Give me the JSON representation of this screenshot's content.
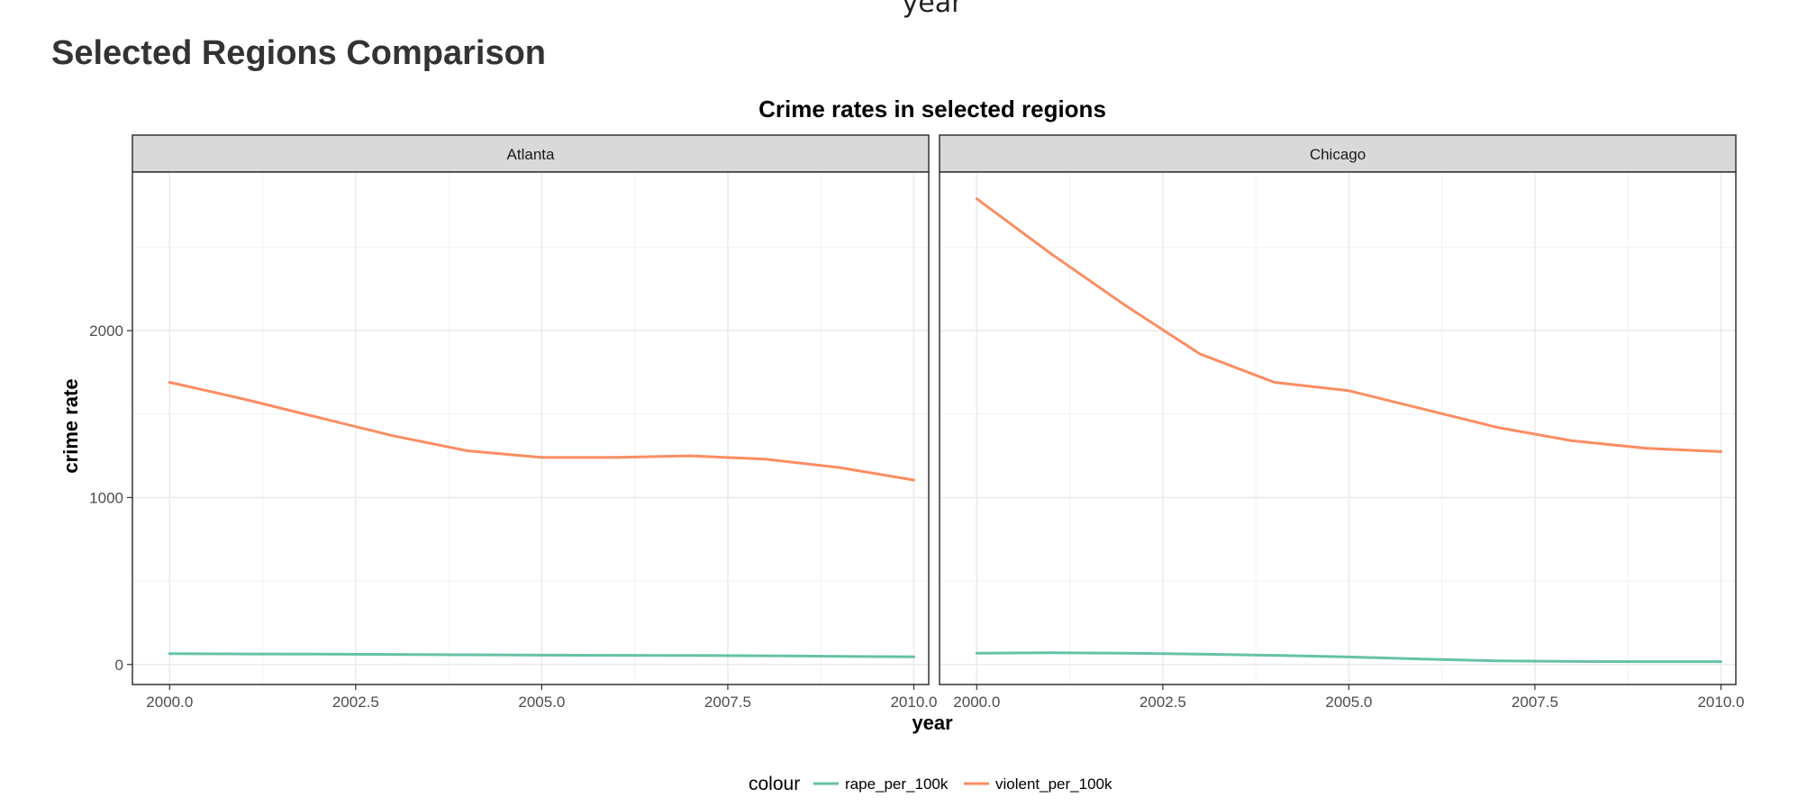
{
  "header": {
    "clipped_axis_label": "year",
    "page_title": "Selected Regions Comparison"
  },
  "colors": {
    "rape_per_100k": "#66c2a5",
    "violent_per_100k": "#fc8d62",
    "strip_fill": "#d9d9d9",
    "grid": "#ebebeb"
  },
  "chart_data": {
    "type": "line",
    "title": "Crime rates in selected regions",
    "xlabel": "year",
    "ylabel": "crime rate",
    "xlim": [
      1999.5,
      2010.2
    ],
    "ylim": [
      -120,
      2950
    ],
    "x_ticks": [
      2000.0,
      2002.5,
      2005.0,
      2007.5,
      2010.0
    ],
    "x_tick_labels": [
      "2000.0",
      "2002.5",
      "2005.0",
      "2007.5",
      "2010.0"
    ],
    "y_ticks": [
      0,
      1000,
      2000
    ],
    "y_tick_labels": [
      "0",
      "1000",
      "2000"
    ],
    "grid": true,
    "legend": {
      "title": "colour",
      "position": "bottom",
      "entries": [
        "rape_per_100k",
        "violent_per_100k"
      ]
    },
    "panels": [
      {
        "label": "Atlanta",
        "x": [
          2000,
          2001,
          2002,
          2003,
          2004,
          2005,
          2006,
          2007,
          2008,
          2009,
          2010
        ],
        "series": [
          {
            "name": "rape_per_100k",
            "values": [
              65,
              63,
              62,
              60,
              58,
              56,
              55,
              54,
              52,
              49,
              46
            ]
          },
          {
            "name": "violent_per_100k",
            "values": [
              1690,
              1590,
              1480,
              1370,
              1280,
              1240,
              1240,
              1250,
              1230,
              1180,
              1105
            ]
          }
        ]
      },
      {
        "label": "Chicago",
        "x": [
          2000,
          2001,
          2002,
          2003,
          2004,
          2005,
          2006,
          2007,
          2008,
          2009,
          2010
        ],
        "series": [
          {
            "name": "rape_per_100k",
            "values": [
              68,
              70,
              68,
              62,
              55,
              45,
              32,
              22,
              18,
              17,
              17
            ]
          },
          {
            "name": "violent_per_100k",
            "values": [
              2790,
              2460,
              2150,
              1860,
              1690,
              1640,
              1530,
              1420,
              1340,
              1295,
              1275
            ]
          }
        ]
      }
    ]
  }
}
